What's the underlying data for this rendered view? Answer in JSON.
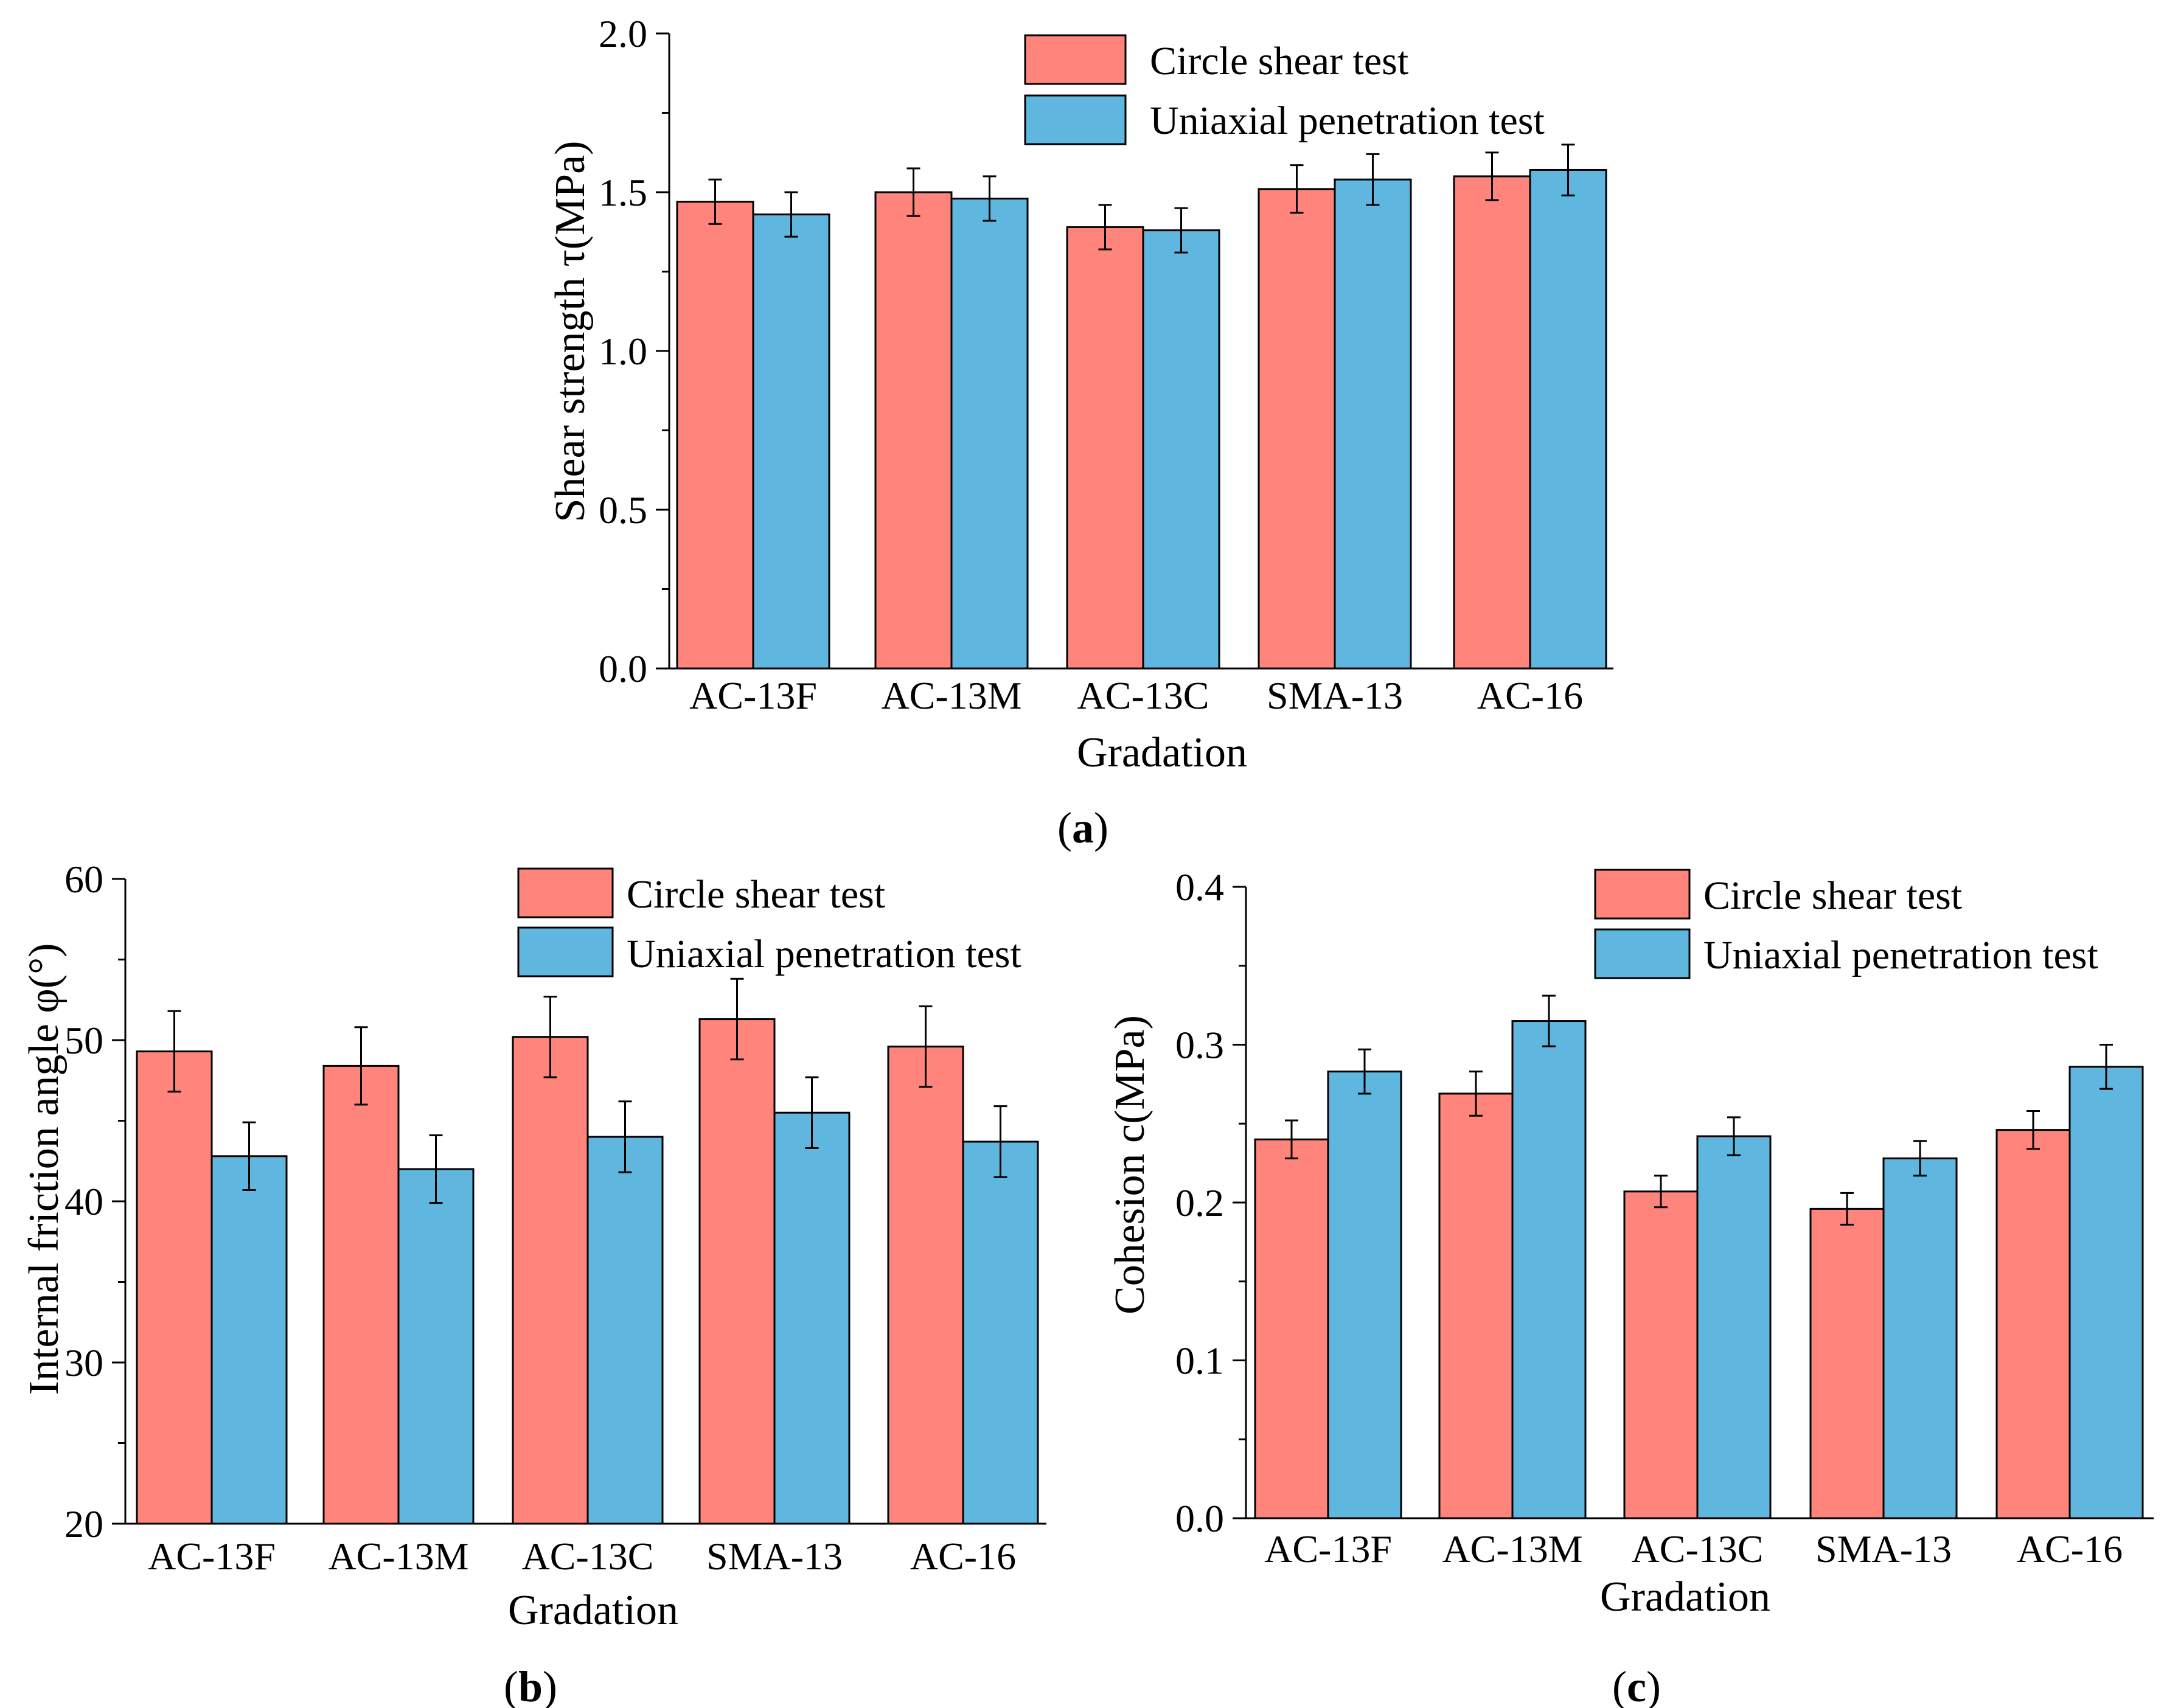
{
  "colors": {
    "circle": "#FF847C",
    "uniaxial": "#5FB7E0",
    "axis": "#000000"
  },
  "charts": [
    {
      "id": "a",
      "caption": {
        "open": "(",
        "label": "a",
        "close": ")"
      },
      "legend": {
        "series1": "Circle shear test",
        "series2": "Uniaxial penetration test"
      }
    },
    {
      "id": "b",
      "caption": {
        "open": "(",
        "label": "b",
        "close": ")"
      },
      "legend": {
        "series1": "Circle shear test",
        "series2": "Uniaxial penetration test"
      }
    },
    {
      "id": "c",
      "caption": {
        "open": "(",
        "label": "c",
        "close": ")"
      },
      "legend": {
        "series1": "Circle shear test",
        "series2": "Uniaxial penetration test"
      }
    }
  ],
  "chart_data": [
    {
      "type": "bar",
      "title": "(a)",
      "xlabel": "Gradation",
      "ylabel": "Shear strength  τ(MPa)",
      "ylim": [
        0,
        2.0
      ],
      "yticks": [
        "0.0",
        "0.5",
        "1.0",
        "1.5",
        "2.0"
      ],
      "ytick_values": [
        0,
        0.5,
        1.0,
        1.5,
        2.0
      ],
      "categories": [
        "AC-13F",
        "AC-13M",
        "AC-13C",
        "SMA-13",
        "AC-16"
      ],
      "series": [
        {
          "name": "Circle shear test",
          "values": [
            1.47,
            1.5,
            1.39,
            1.51,
            1.55
          ],
          "errors": [
            0.07,
            0.075,
            0.07,
            0.075,
            0.075
          ]
        },
        {
          "name": "Uniaxial penetration test",
          "values": [
            1.43,
            1.48,
            1.38,
            1.54,
            1.57
          ],
          "errors": [
            0.07,
            0.07,
            0.07,
            0.08,
            0.08
          ]
        }
      ],
      "legend_position": "top-right"
    },
    {
      "type": "bar",
      "title": "(b)",
      "xlabel": "Gradation",
      "ylabel": "Internal friction angle  φ(°)",
      "ylim": [
        20,
        60
      ],
      "yticks": [
        "20",
        "30",
        "40",
        "50",
        "60"
      ],
      "ytick_values": [
        20,
        30,
        40,
        50,
        60
      ],
      "categories": [
        "AC-13F",
        "AC-13M",
        "AC-13C",
        "SMA-13",
        "AC-16"
      ],
      "series": [
        {
          "name": "Circle shear test",
          "values": [
            49.3,
            48.4,
            50.2,
            51.3,
            49.6
          ],
          "errors": [
            2.5,
            2.4,
            2.5,
            2.5,
            2.5
          ]
        },
        {
          "name": "Uniaxial penetration test",
          "values": [
            42.8,
            42.0,
            44.0,
            45.5,
            43.7
          ],
          "errors": [
            2.1,
            2.1,
            2.2,
            2.2,
            2.2
          ]
        }
      ],
      "legend_position": "top-right"
    },
    {
      "type": "bar",
      "title": "(c)",
      "xlabel": "Gradation",
      "ylabel": "Cohesion  c(MPa)",
      "ylim": [
        0,
        0.4
      ],
      "yticks": [
        "0.0",
        "0.1",
        "0.2",
        "0.3",
        "0.4"
      ],
      "ytick_values": [
        0,
        0.1,
        0.2,
        0.3,
        0.4
      ],
      "categories": [
        "AC-13F",
        "AC-13M",
        "AC-13C",
        "SMA-13",
        "AC-16"
      ],
      "series": [
        {
          "name": "Circle shear test",
          "values": [
            0.24,
            0.269,
            0.207,
            0.196,
            0.246
          ],
          "errors": [
            0.012,
            0.014,
            0.01,
            0.01,
            0.012
          ]
        },
        {
          "name": "Uniaxial penetration test",
          "values": [
            0.283,
            0.315,
            0.242,
            0.228,
            0.286
          ],
          "errors": [
            0.014,
            0.016,
            0.012,
            0.011,
            0.014
          ]
        }
      ],
      "legend_position": "top-right"
    }
  ]
}
